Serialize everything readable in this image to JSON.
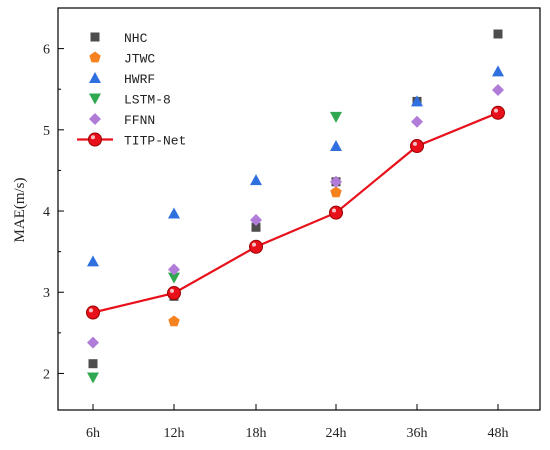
{
  "chart_data": {
    "type": "scatter",
    "title": "",
    "xlabel": "",
    "ylabel": "MAE(m/s)",
    "categories": [
      "6h",
      "12h",
      "18h",
      "24h",
      "36h",
      "48h"
    ],
    "ylim": [
      1.55,
      6.5
    ],
    "yticks": [
      2,
      3,
      4,
      5,
      6
    ],
    "grid": false,
    "legend_position": "top-left",
    "series": [
      {
        "name": "NHC",
        "marker": "square",
        "color": "#4d4d4d",
        "values": [
          2.12,
          2.95,
          3.8,
          4.36,
          5.35,
          6.18
        ]
      },
      {
        "name": "JTWC",
        "marker": "pentagon",
        "color": "#f5821f",
        "values": [
          null,
          2.64,
          null,
          4.23,
          null,
          null
        ]
      },
      {
        "name": "HWRF",
        "marker": "triangle-up",
        "color": "#2f6fde",
        "values": [
          3.38,
          3.97,
          4.38,
          4.8,
          5.35,
          5.72
        ]
      },
      {
        "name": "LSTM-8",
        "marker": "triangle-down",
        "color": "#2fa84f",
        "values": [
          1.95,
          3.18,
          null,
          5.16,
          null,
          null
        ]
      },
      {
        "name": "FFNN",
        "marker": "diamond",
        "color": "#b07cd8",
        "values": [
          2.38,
          3.28,
          3.89,
          4.36,
          5.1,
          5.49
        ]
      },
      {
        "name": "TITP-Net",
        "marker": "circle-line",
        "color": "#e8101a",
        "values": [
          2.75,
          2.99,
          3.56,
          3.98,
          4.8,
          5.21
        ]
      }
    ]
  }
}
